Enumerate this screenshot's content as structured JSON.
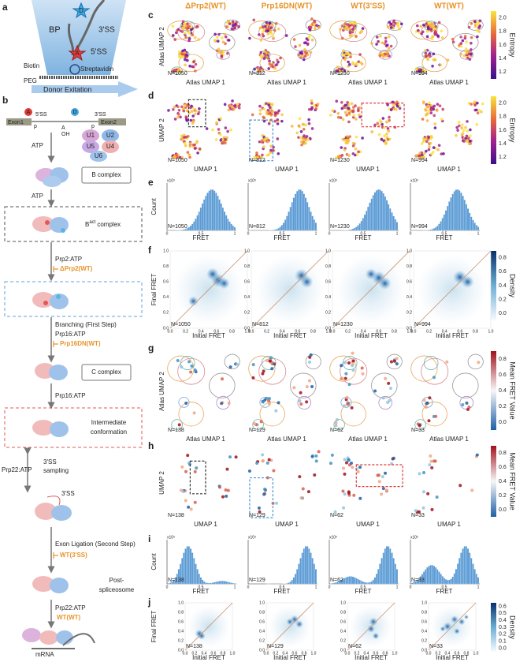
{
  "panel_labels": [
    "a",
    "b",
    "c",
    "d",
    "e",
    "f",
    "g",
    "h",
    "i",
    "j"
  ],
  "schematic": {
    "donor": "D",
    "acceptor": "A",
    "bp": "BP",
    "ss3": "3'SS",
    "ss5": "5'SS",
    "biotin": "Biotin",
    "streptavidin": "Streptavidin",
    "peg": "PEG",
    "excitation": "Donor Exitation"
  },
  "pathway": {
    "ss5": "5'SS",
    "ss3": "3'SS",
    "exon1": "Exon1",
    "exon2": "Exon2",
    "oh": "OH",
    "p": "p",
    "a": "A",
    "donor": "D",
    "snrnps": [
      "U1",
      "U2",
      "U5",
      "U4",
      "U6"
    ],
    "bact": {
      "base": "B",
      "sup": "act",
      "rest": "complex"
    },
    "labels": [
      "ATP",
      "B complex",
      "ATP",
      "Prp2:ATP",
      "ΔPrp2(WT)",
      "Branching (First Step)",
      "Prp16:ATP",
      "Prp16DN(WT)",
      "C complex",
      "Prp16:ATP",
      "Intermediate",
      "conformation",
      "Prp22:ATP",
      "3'SS",
      "sampling",
      "3'SS",
      "Exon Ligation (Second Step)",
      "WT(3'SS)",
      "Post-",
      "spliceosome",
      "Prp22:ATP",
      "WT(WT)",
      "mRNA"
    ]
  },
  "columns": [
    "ΔPrp2(WT)",
    "Prp16DN(WT)",
    "WT(3'SS)",
    "WT(WT)"
  ],
  "rows": [
    {
      "panel": "c",
      "y_label": "Atlas UMAP 2",
      "x_label": "Atlas UMAP 1",
      "n": [
        "N=1050",
        "N=812",
        "N=1230",
        "N=994"
      ],
      "colorbar": {
        "title": "Entropy",
        "ticks": [
          "1.2",
          "1.4",
          "1.6",
          "1.8",
          "2.0"
        ]
      }
    },
    {
      "panel": "d",
      "y_label": "UMAP 2",
      "x_label": "UMAP 1",
      "n": [
        "N=1050",
        "N=812",
        "N=1230",
        "N=994"
      ],
      "colorbar": {
        "title": "Entropy",
        "ticks": [
          "1.2",
          "1.4",
          "1.6",
          "1.8",
          "2.0"
        ]
      }
    },
    {
      "panel": "e",
      "y_label": "Count",
      "x_label": "FRET",
      "scale": "x10³",
      "n": [
        "N=1050",
        "N=812",
        "N=1230",
        "N=994"
      ],
      "x_ticks": [
        "0",
        "0.5",
        "1"
      ]
    },
    {
      "panel": "f",
      "y_label": "Final FRET",
      "x_label": "Initial FRET",
      "n": [
        "N=1050",
        "N=812",
        "N=1230",
        "N=994"
      ],
      "x_ticks": [
        "0.0",
        "0.2",
        "0.4",
        "0.6",
        "0.8",
        "1.0"
      ],
      "y_ticks": [
        "0.0",
        "0.2",
        "0.4",
        "0.6",
        "0.8",
        "1.0"
      ],
      "colorbar": {
        "title": "Density",
        "ticks": [
          "0.0",
          "0.2",
          "0.4",
          "0.6",
          "0.8"
        ]
      }
    },
    {
      "panel": "g",
      "y_label": "Atlas UMAP 2",
      "x_label": "Atlas UMAP 1",
      "n": [
        "N=138",
        "N=129",
        "N=62",
        "N=33"
      ],
      "colorbar": {
        "title": "Mean FRET Value",
        "ticks": [
          "0.0",
          "0.2",
          "0.4",
          "0.6",
          "0.8"
        ]
      }
    },
    {
      "panel": "h",
      "y_label": "UMAP 2",
      "x_label": "UMAP 1",
      "n": [
        "N=138",
        "N=129",
        "N=62",
        "N=33"
      ],
      "colorbar": {
        "title": "Mean FRET Value",
        "ticks": [
          "0.0",
          "0.2",
          "0.4",
          "0.6",
          "0.8"
        ]
      }
    },
    {
      "panel": "i",
      "y_label": "Count",
      "x_label": "FRET",
      "scale": "x10³",
      "n": [
        "N=138",
        "N=129",
        "N=62",
        "N=33"
      ],
      "x_ticks": [
        "0",
        "0.5",
        "1"
      ]
    },
    {
      "panel": "j",
      "y_label": "Final FRET",
      "x_label": "Initial FRET",
      "n": [
        "N=138",
        "N=129",
        "N=62",
        "N=33"
      ],
      "x_ticks": [
        "0.0",
        "0.2",
        "0.4",
        "0.6",
        "0.8",
        "1.0"
      ],
      "y_ticks": [
        "0.0",
        "0.2",
        "0.4",
        "0.6",
        "0.8",
        "1.0"
      ],
      "colorbar": {
        "title": "Density",
        "ticks": [
          "0.0",
          "0.1",
          "0.2",
          "0.3",
          "0.4",
          "0.5",
          "0.6"
        ]
      }
    }
  ]
}
